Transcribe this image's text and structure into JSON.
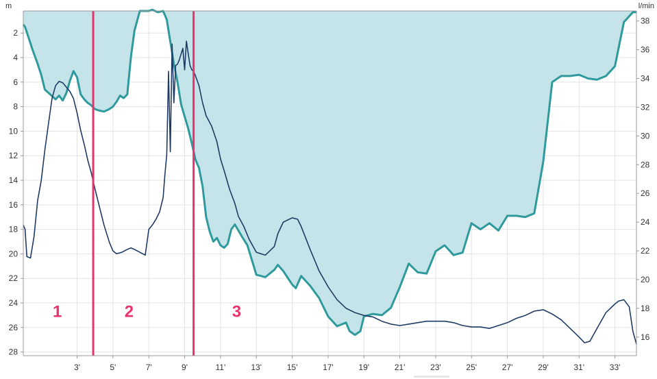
{
  "chart_data": {
    "type": "line",
    "title": "",
    "x_unit": "minutes",
    "grid": true,
    "left_axis": {
      "label": "m",
      "min": 0.2,
      "max": 28.3,
      "ticks": [
        2,
        4,
        6,
        8,
        10,
        12,
        14,
        16,
        18,
        20,
        22,
        24,
        26,
        28
      ],
      "inverted": true
    },
    "right_axis": {
      "label": "l/min",
      "min": 14.7,
      "max": 38.7,
      "ticks": [
        16,
        18,
        20,
        22,
        24,
        26,
        28,
        30,
        32,
        34,
        36,
        38
      ]
    },
    "x_axis": {
      "min": 0,
      "max": 34.2,
      "ticks": [
        3,
        5,
        7,
        9,
        11,
        13,
        15,
        17,
        19,
        21,
        23,
        25,
        27,
        29,
        31,
        33
      ],
      "tick_labels": [
        "3'",
        "5'",
        "7'",
        "9'",
        "11'",
        "13'",
        "15'",
        "17'",
        "19'",
        "21'",
        "23'",
        "25'",
        "27'",
        "29'",
        "31'",
        "33'"
      ]
    },
    "phase_markers": [
      3.9,
      9.5
    ],
    "phase_labels": [
      {
        "text": "1",
        "x": 1.9,
        "depth": 24.7
      },
      {
        "text": "2",
        "x": 5.9,
        "depth": 24.7
      },
      {
        "text": "3",
        "x": 11.9,
        "depth": 24.7
      }
    ],
    "colors": {
      "depth_fill": "#c1e3e8",
      "depth_line": "#2e9a9c",
      "flow_line": "#1f3a64",
      "marker": "#e8336d",
      "grid": "#e3e3e3",
      "axis": "#999999"
    },
    "series": [
      {
        "axis": "left",
        "role": "depth-profile",
        "fill": true,
        "x": [
          0,
          0.1,
          0.3,
          0.5,
          0.8,
          1.0,
          1.2,
          1.5,
          1.8,
          2.0,
          2.2,
          2.4,
          2.6,
          2.8,
          3.0,
          3.2,
          3.4,
          3.6,
          3.8,
          4.0,
          4.2,
          4.5,
          4.8,
          5.0,
          5.2,
          5.4,
          5.6,
          5.8,
          6.0,
          6.2,
          6.5,
          6.8,
          7.0,
          7.2,
          7.5,
          7.8,
          8.0,
          8.2,
          8.4,
          8.6,
          8.8,
          9.0,
          9.2,
          9.4,
          9.6,
          9.8,
          10.0,
          10.2,
          10.4,
          10.6,
          10.8,
          11.0,
          11.2,
          11.4,
          11.6,
          11.8,
          12.0,
          12.2,
          12.5,
          13.0,
          13.5,
          14.0,
          14.2,
          14.5,
          15.0,
          15.2,
          15.5,
          16.0,
          16.5,
          17.0,
          17.5,
          18.0,
          18.2,
          18.5,
          18.8,
          19.0,
          19.5,
          20.0,
          20.5,
          21.0,
          21.5,
          22.0,
          22.5,
          23.0,
          23.5,
          24.0,
          24.5,
          25.0,
          25.5,
          26.0,
          26.5,
          27.0,
          27.5,
          28.0,
          28.5,
          29.0,
          29.5,
          30.0,
          30.5,
          31.0,
          31.5,
          32.0,
          32.5,
          33.0,
          33.5,
          34.0,
          34.2
        ],
        "y": [
          1.3,
          1.5,
          2.4,
          3.3,
          4.5,
          5.4,
          6.6,
          7.0,
          7.4,
          7.1,
          7.5,
          6.9,
          5.9,
          5.1,
          5.6,
          7.0,
          7.4,
          7.7,
          7.9,
          8.2,
          8.3,
          8.4,
          8.2,
          8.0,
          7.6,
          7.1,
          7.3,
          7.0,
          4.0,
          1.8,
          0.2,
          0.2,
          0.2,
          0.1,
          0.3,
          0.2,
          0.9,
          2.7,
          4.5,
          6.0,
          7.8,
          8.8,
          9.8,
          11.0,
          12.3,
          13.0,
          14.5,
          17.0,
          18.2,
          19.0,
          18.7,
          19.3,
          19.5,
          19.2,
          18.0,
          17.6,
          18.1,
          18.6,
          19.3,
          21.7,
          21.9,
          21.3,
          20.9,
          21.4,
          22.5,
          22.8,
          21.8,
          22.6,
          23.6,
          25.1,
          25.9,
          25.6,
          26.3,
          26.6,
          26.3,
          25.1,
          24.9,
          25.0,
          24.4,
          22.7,
          20.8,
          21.5,
          21.6,
          19.8,
          19.3,
          20.1,
          19.9,
          17.5,
          18.0,
          17.5,
          18.1,
          16.9,
          16.9,
          17.0,
          16.7,
          12.5,
          6.0,
          5.5,
          5.5,
          5.4,
          5.7,
          5.8,
          5.5,
          4.7,
          1.1,
          0.3,
          0.3
        ]
      },
      {
        "axis": "right",
        "role": "flow-rate",
        "x": [
          0,
          0.1,
          0.2,
          0.4,
          0.6,
          0.8,
          1.0,
          1.2,
          1.4,
          1.6,
          1.8,
          2.0,
          2.2,
          2.4,
          2.6,
          2.8,
          3.0,
          3.2,
          3.4,
          3.6,
          3.8,
          4.0,
          4.2,
          4.5,
          4.8,
          5.0,
          5.2,
          5.5,
          5.8,
          6.0,
          6.2,
          6.5,
          6.8,
          7.0,
          7.2,
          7.4,
          7.6,
          7.8,
          7.9,
          8.0,
          8.1,
          8.2,
          8.3,
          8.4,
          8.5,
          8.6,
          8.7,
          8.8,
          8.9,
          9.0,
          9.1,
          9.2,
          9.3,
          9.4,
          9.5,
          9.6,
          9.8,
          10.0,
          10.2,
          10.5,
          10.8,
          11.0,
          11.2,
          11.5,
          11.8,
          12.0,
          12.3,
          12.6,
          13.0,
          13.5,
          14.0,
          14.2,
          14.5,
          15.0,
          15.3,
          15.5,
          16.0,
          16.5,
          17.0,
          17.5,
          18.0,
          18.5,
          19.0,
          19.5,
          20.0,
          20.5,
          21.0,
          21.5,
          22.0,
          22.5,
          23.0,
          23.5,
          24.0,
          24.5,
          25.0,
          25.5,
          26.0,
          26.5,
          27.0,
          27.5,
          28.0,
          28.5,
          29.0,
          29.5,
          30.0,
          30.5,
          31.0,
          31.3,
          31.6,
          32.0,
          32.5,
          33.0,
          33.2,
          33.5,
          33.8,
          34.0,
          34.2
        ],
        "y": [
          23.8,
          23.5,
          21.6,
          21.5,
          23.0,
          25.5,
          26.9,
          29.0,
          30.8,
          32.6,
          33.5,
          33.8,
          33.7,
          33.4,
          33.1,
          32.6,
          31.6,
          30.4,
          29.4,
          28.3,
          27.4,
          26.3,
          25.3,
          23.8,
          22.6,
          22.0,
          21.8,
          21.9,
          22.1,
          22.2,
          22.1,
          21.9,
          21.7,
          23.5,
          23.8,
          24.2,
          24.7,
          25.7,
          27.3,
          28.7,
          34.5,
          28.9,
          36.4,
          32.3,
          34.9,
          35.0,
          35.3,
          35.7,
          36.1,
          34.6,
          36.6,
          35.7,
          34.9,
          34.6,
          34.5,
          34.2,
          33.5,
          32.3,
          31.4,
          30.7,
          29.6,
          28.4,
          27.6,
          26.3,
          25.3,
          24.4,
          23.7,
          22.8,
          21.9,
          21.7,
          22.3,
          23.2,
          24.0,
          24.3,
          24.2,
          23.7,
          22.1,
          20.6,
          19.5,
          18.6,
          18.0,
          17.7,
          17.5,
          17.4,
          17.1,
          16.9,
          16.8,
          16.9,
          17.0,
          17.1,
          17.1,
          17.1,
          17.0,
          16.8,
          16.7,
          16.7,
          16.6,
          16.8,
          17.0,
          17.3,
          17.5,
          17.8,
          17.9,
          17.6,
          17.2,
          16.6,
          16.0,
          15.6,
          15.7,
          16.6,
          17.7,
          18.3,
          18.5,
          18.6,
          18.1,
          16.4,
          15.5
        ]
      }
    ]
  }
}
